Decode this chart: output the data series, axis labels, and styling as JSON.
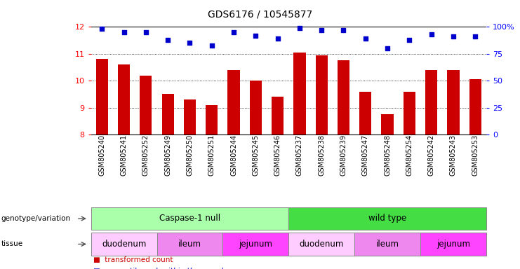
{
  "title": "GDS6176 / 10545877",
  "samples": [
    "GSM805240",
    "GSM805241",
    "GSM805252",
    "GSM805249",
    "GSM805250",
    "GSM805251",
    "GSM805244",
    "GSM805245",
    "GSM805246",
    "GSM805237",
    "GSM805238",
    "GSM805239",
    "GSM805247",
    "GSM805248",
    "GSM805254",
    "GSM805242",
    "GSM805243",
    "GSM805253"
  ],
  "bar_values": [
    10.8,
    10.6,
    10.2,
    9.5,
    9.3,
    9.1,
    10.4,
    10.0,
    9.4,
    11.05,
    10.95,
    10.75,
    9.6,
    8.75,
    9.6,
    10.4,
    10.4,
    10.05
  ],
  "dot_values": [
    98,
    95,
    95,
    88,
    85,
    83,
    95,
    92,
    89,
    99,
    97,
    97,
    89,
    80,
    88,
    93,
    91,
    91
  ],
  "bar_color": "#cc0000",
  "dot_color": "#0000cc",
  "ylim_left": [
    8,
    12
  ],
  "ylim_right": [
    0,
    100
  ],
  "yticks_left": [
    8,
    9,
    10,
    11,
    12
  ],
  "yticks_right": [
    0,
    25,
    50,
    75,
    100
  ],
  "ytick_labels_right": [
    "0",
    "25",
    "50",
    "75",
    "100%"
  ],
  "genotype_groups": [
    {
      "label": "Caspase-1 null",
      "start": 0,
      "end": 9,
      "color": "#aaffaa"
    },
    {
      "label": "wild type",
      "start": 9,
      "end": 18,
      "color": "#44dd44"
    }
  ],
  "tissue_groups": [
    {
      "label": "duodenum",
      "start": 0,
      "end": 3,
      "color": "#ffccff"
    },
    {
      "label": "ileum",
      "start": 3,
      "end": 6,
      "color": "#ee88ee"
    },
    {
      "label": "jejunum",
      "start": 6,
      "end": 9,
      "color": "#ff44ff"
    },
    {
      "label": "duodenum",
      "start": 9,
      "end": 12,
      "color": "#ffccff"
    },
    {
      "label": "ileum",
      "start": 12,
      "end": 15,
      "color": "#ee88ee"
    },
    {
      "label": "jejunum",
      "start": 15,
      "end": 18,
      "color": "#ff44ff"
    }
  ]
}
